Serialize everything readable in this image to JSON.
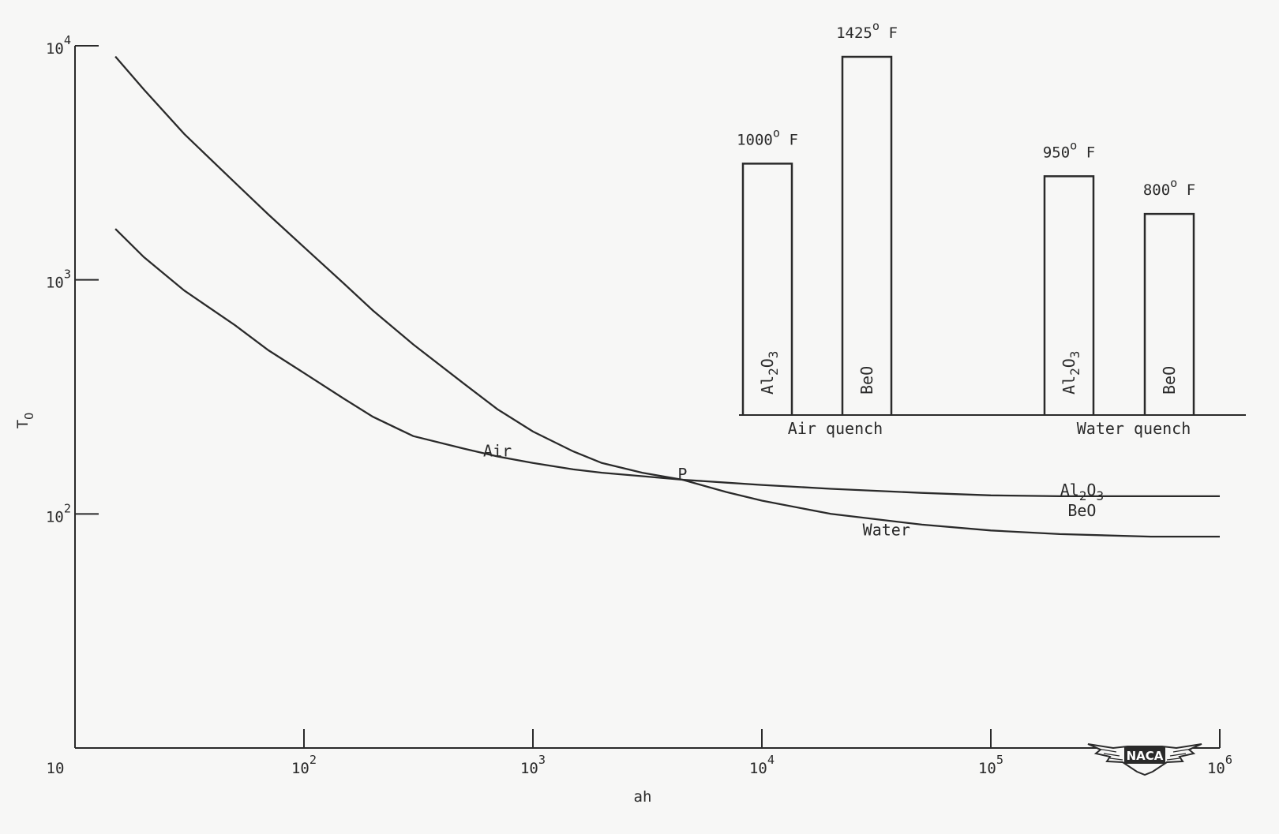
{
  "chart_data": [
    {
      "type": "line",
      "title": "",
      "xlabel": "ah",
      "ylabel": "T",
      "ylabel_sub": "O",
      "x_scale": "log",
      "y_scale": "log",
      "xlim": [
        10,
        1000000
      ],
      "ylim": [
        10,
        10000
      ],
      "x_ticks": [
        {
          "value": 10,
          "base": "10",
          "exp": ""
        },
        {
          "value": 100,
          "base": "10",
          "exp": "2"
        },
        {
          "value": 1000,
          "base": "10",
          "exp": "3"
        },
        {
          "value": 10000,
          "base": "10",
          "exp": "4"
        },
        {
          "value": 100000,
          "base": "10",
          "exp": "5"
        },
        {
          "value": 1000000,
          "base": "10",
          "exp": "6"
        }
      ],
      "y_ticks": [
        {
          "value": 10000,
          "base": "10",
          "exp": "4"
        },
        {
          "value": 1000,
          "base": "10",
          "exp": "3"
        },
        {
          "value": 100,
          "base": "10",
          "exp": "2"
        },
        {
          "value": 10,
          "base": "10",
          "exp": ""
        }
      ],
      "series": [
        {
          "name": "BeO",
          "x": [
            15,
            20,
            30,
            50,
            70,
            100,
            150,
            200,
            300,
            500,
            700,
            1000,
            1500,
            2000,
            3000,
            4500,
            7000,
            10000,
            20000,
            50000,
            100000,
            200000,
            500000,
            1000000
          ],
          "y": [
            9000,
            6500,
            4200,
            2600,
            1900,
            1380,
            960,
            740,
            530,
            360,
            280,
            225,
            185,
            165,
            150,
            140,
            124,
            114,
            100,
            90,
            85,
            82,
            80,
            80
          ]
        },
        {
          "name": "Al2O3",
          "x": [
            15,
            20,
            30,
            50,
            70,
            100,
            150,
            200,
            300,
            500,
            700,
            1000,
            1500,
            2000,
            3000,
            4500,
            7000,
            10000,
            20000,
            50000,
            100000,
            200000,
            500000,
            1000000
          ],
          "y": [
            1650,
            1250,
            900,
            640,
            500,
            400,
            310,
            260,
            215,
            190,
            176,
            165,
            155,
            150,
            145,
            140,
            136,
            133,
            128,
            123,
            120,
            119,
            119,
            119
          ]
        }
      ],
      "annotations": [
        {
          "text": "Air",
          "x": 700,
          "y": 176
        },
        {
          "text": "P",
          "x": 4500,
          "y": 140
        },
        {
          "text": "Water",
          "x": 35000,
          "y": 81
        },
        {
          "text": "BeO",
          "x": 250000,
          "y": 98
        },
        {
          "text": "Al",
          "sub1": "2",
          "mid": "O",
          "sub2": "3",
          "x": 250000,
          "y": 120
        }
      ]
    },
    {
      "type": "bar",
      "title": "",
      "value_unit": "° F",
      "groups": [
        {
          "label": "Air quench",
          "bars": [
            {
              "material": "Al2O3",
              "mat_base": "Al",
              "mat_sub1": "2",
              "mat_mid": "O",
              "mat_sub2": "3",
              "value": 1000,
              "value_text": "1000",
              "unit_o": "o",
              "unit_f": "F"
            },
            {
              "material": "BeO",
              "mat_base": "BeO",
              "mat_sub1": "",
              "mat_mid": "",
              "mat_sub2": "",
              "value": 1425,
              "value_text": "1425",
              "unit_o": "o",
              "unit_f": "F"
            }
          ]
        },
        {
          "label": "Water quench",
          "bars": [
            {
              "material": "Al2O3",
              "mat_base": "Al",
              "mat_sub1": "2",
              "mat_mid": "O",
              "mat_sub2": "3",
              "value": 950,
              "value_text": "950",
              "unit_o": "o",
              "unit_f": "F"
            },
            {
              "material": "BeO",
              "mat_base": "BeO",
              "mat_sub1": "",
              "mat_mid": "",
              "mat_sub2": "",
              "value": 800,
              "value_text": "800",
              "unit_o": "o",
              "unit_f": "F"
            }
          ]
        }
      ]
    }
  ],
  "logo": {
    "text": "NACA"
  },
  "colors": {
    "ink": "#2a2a2a",
    "background": "#f7f7f6"
  }
}
